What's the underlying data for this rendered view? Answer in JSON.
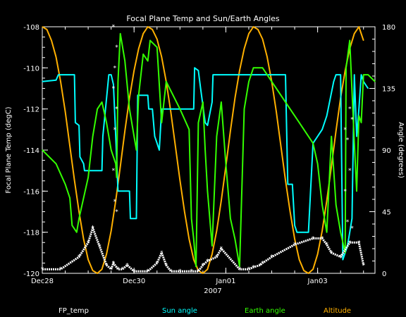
{
  "chart_data": {
    "type": "line",
    "title": "Focal Plane Temp and Sun/Earth Angles",
    "xlabel": "2007",
    "ylabel_left": "Focal Plane Temp (degC)",
    "ylabel_right": "Angle (degrees)",
    "x_ticks": [
      "Dec28",
      "Dec30",
      "Jan01",
      "Jan03"
    ],
    "x_tick_days": [
      0,
      2,
      4,
      6
    ],
    "xlim_days": [
      0,
      7.25
    ],
    "y_left_ticks": [
      "-108",
      "-110",
      "-112",
      "-114",
      "-116",
      "-118",
      "-120"
    ],
    "ylim_left": [
      -120,
      -108
    ],
    "y_right_ticks": [
      "180",
      "135",
      "90",
      "45",
      "0"
    ],
    "ylim_right": [
      0,
      180
    ],
    "grid": false,
    "legend_position": "bottom",
    "series": [
      {
        "name": "FP_temp",
        "axis": "left",
        "color": "#ffffff",
        "style": "markers",
        "x": [
          0.0,
          0.4,
          0.8,
          1.0,
          1.1,
          1.25,
          1.4,
          1.5,
          1.55,
          1.65,
          1.75,
          1.85,
          2.0,
          2.3,
          2.5,
          2.6,
          2.7,
          2.8,
          3.0,
          3.25,
          3.4,
          3.5,
          3.6,
          3.8,
          3.9,
          4.3,
          4.5,
          4.6,
          4.75,
          4.8,
          5.0,
          5.5,
          5.9,
          6.1,
          6.2,
          6.3,
          6.5,
          6.7,
          6.9,
          7.0
        ],
        "y": [
          -119.8,
          -119.8,
          -119.2,
          -118.5,
          -117.8,
          -118.7,
          -119.6,
          -119.8,
          -119.5,
          -119.8,
          -119.8,
          -119.6,
          -119.9,
          -119.9,
          -119.5,
          -119.0,
          -119.6,
          -119.9,
          -119.9,
          -119.9,
          -119.9,
          -119.6,
          -119.4,
          -119.2,
          -118.8,
          -119.8,
          -119.8,
          -119.7,
          -119.6,
          -119.5,
          -119.2,
          -118.6,
          -118.3,
          -118.3,
          -118.6,
          -119.0,
          -119.2,
          -118.5,
          -118.5,
          -119.6
        ]
      },
      {
        "name": "FP_temp spikes",
        "axis": "left",
        "color": "#ffffff",
        "style": "markers",
        "x": [
          1.55,
          1.55,
          1.55,
          1.58,
          1.58,
          1.58,
          1.62,
          1.62,
          1.62,
          6.6,
          6.6,
          6.65,
          6.65,
          6.7,
          6.7,
          6.75,
          6.75
        ],
        "y": [
          -115,
          -111,
          -108,
          -110,
          -113,
          -116.5,
          -109,
          -112,
          -117,
          -113,
          -116,
          -113.5,
          -117.5,
          -112,
          -115,
          -112.5,
          -117.8
        ]
      },
      {
        "name": "Sun angle",
        "axis": "right",
        "color": "#00ffff",
        "style": "line",
        "x": [
          0.0,
          0.3,
          0.35,
          0.7,
          0.72,
          0.8,
          0.82,
          0.9,
          0.92,
          1.3,
          1.32,
          1.45,
          1.5,
          1.55,
          1.6,
          1.65,
          1.7,
          1.9,
          1.92,
          2.05,
          2.08,
          2.3,
          2.32,
          2.4,
          2.45,
          2.5,
          2.55,
          2.6,
          3.3,
          3.32,
          3.4,
          3.45,
          3.55,
          3.6,
          3.7,
          3.72,
          5.3,
          5.35,
          5.45,
          5.5,
          5.55,
          5.6,
          5.8,
          5.9,
          6.0,
          6.1,
          6.2,
          6.35,
          6.4,
          6.5,
          6.55,
          6.6,
          6.65,
          6.7,
          6.75,
          6.8,
          6.85,
          6.9,
          6.95,
          7.0,
          7.1
        ],
        "y": [
          140,
          141,
          145,
          145,
          110,
          108,
          85,
          80,
          75,
          75,
          100,
          145,
          145,
          138,
          100,
          60,
          60,
          60,
          40,
          40,
          130,
          130,
          120,
          120,
          100,
          95,
          90,
          120,
          120,
          150,
          148,
          135,
          110,
          108,
          125,
          145,
          145,
          65,
          65,
          35,
          30,
          30,
          30,
          95,
          100,
          105,
          115,
          140,
          145,
          145,
          10,
          15,
          20,
          30,
          40,
          145,
          100,
          120,
          145,
          140,
          135
        ]
      },
      {
        "name": "Earth angle",
        "axis": "right",
        "color": "#33ff00",
        "style": "line",
        "x": [
          0.0,
          0.3,
          0.5,
          0.6,
          0.65,
          0.75,
          0.8,
          1.0,
          1.1,
          1.2,
          1.3,
          1.4,
          1.5,
          1.6,
          1.62,
          1.65,
          1.7,
          1.8,
          1.9,
          2.0,
          2.05,
          2.1,
          2.2,
          2.3,
          2.35,
          2.5,
          2.6,
          2.7,
          3.0,
          3.2,
          3.25,
          3.3,
          3.35,
          3.4,
          3.5,
          3.55,
          3.6,
          3.7,
          3.8,
          3.9,
          4.0,
          4.1,
          4.2,
          4.3,
          4.4,
          4.5,
          4.6,
          4.8,
          5.0,
          5.3,
          5.6,
          5.9,
          6.0,
          6.1,
          6.2,
          6.3,
          6.4,
          6.5,
          6.6,
          6.62,
          6.7,
          6.8,
          6.85,
          6.9,
          6.95,
          7.0,
          7.1,
          7.25
        ],
        "y": [
          90,
          80,
          65,
          55,
          35,
          30,
          40,
          70,
          100,
          120,
          125,
          110,
          90,
          80,
          70,
          140,
          175,
          155,
          120,
          100,
          90,
          130,
          160,
          155,
          170,
          165,
          110,
          140,
          120,
          105,
          40,
          25,
          5,
          110,
          125,
          90,
          60,
          20,
          100,
          125,
          80,
          40,
          25,
          5,
          120,
          140,
          150,
          150,
          140,
          125,
          110,
          95,
          80,
          50,
          30,
          100,
          50,
          30,
          15,
          150,
          170,
          95,
          60,
          115,
          110,
          145,
          145,
          140
        ]
      },
      {
        "name": "Altitude",
        "axis": "right",
        "color": "#ffb000",
        "style": "line",
        "x": [
          0.0,
          0.1,
          0.2,
          0.3,
          0.4,
          0.5,
          0.6,
          0.7,
          0.8,
          0.9,
          1.0,
          1.1,
          1.2,
          1.3,
          1.4,
          1.5,
          1.6,
          1.7,
          1.8,
          1.9,
          2.0,
          2.1,
          2.2,
          2.3,
          2.4,
          2.5,
          2.6,
          2.7,
          2.8,
          2.9,
          3.0,
          3.1,
          3.2,
          3.3,
          3.4,
          3.5,
          3.6,
          3.7,
          3.8,
          3.9,
          4.0,
          4.1,
          4.2,
          4.3,
          4.4,
          4.5,
          4.6,
          4.7,
          4.8,
          4.9,
          5.0,
          5.1,
          5.2,
          5.3,
          5.4,
          5.5,
          5.6,
          5.7,
          5.8,
          5.9,
          6.0,
          6.1,
          6.2,
          6.3,
          6.4,
          6.5,
          6.6,
          6.7,
          6.8,
          6.9,
          7.0
        ],
        "y": [
          180,
          178,
          170,
          158,
          140,
          118,
          93,
          68,
          45,
          25,
          10,
          2,
          0,
          3,
          14,
          31,
          53,
          78,
          104,
          128,
          148,
          164,
          175,
          180,
          178,
          171,
          158,
          140,
          118,
          93,
          68,
          45,
          25,
          10,
          2,
          0,
          3,
          14,
          31,
          53,
          78,
          104,
          128,
          148,
          164,
          175,
          180,
          178,
          171,
          158,
          140,
          118,
          93,
          68,
          45,
          25,
          10,
          2,
          0,
          3,
          14,
          31,
          53,
          78,
          104,
          128,
          148,
          164,
          175,
          180,
          170
        ]
      }
    ]
  },
  "legend": {
    "items": [
      {
        "label": "FP_temp",
        "color": "#ffffff"
      },
      {
        "label": "Sun angle",
        "color": "#00ffff"
      },
      {
        "label": "Earth angle",
        "color": "#33ff00"
      },
      {
        "label": "Altitude",
        "color": "#ffb000"
      }
    ]
  }
}
